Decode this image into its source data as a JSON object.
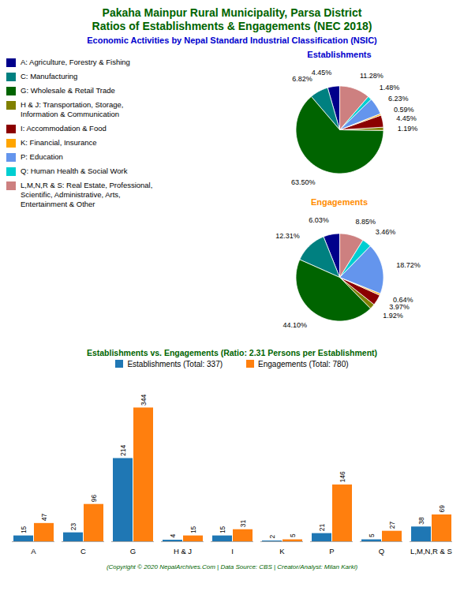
{
  "title": "Pakaha Mainpur Rural Municipality, Parsa District\nRatios of Establishments & Engagements (NEC 2018)",
  "subtitle": "Economic Activities by Nepal Standard Industrial Classification (NSIC)",
  "annotations": [
    "(Copyright © 2020 NepalArchives.Com | Data Source: CBS | Creator/Analyst: Milan Karki)"
  ],
  "chart_data": [
    {
      "type": "pie",
      "title": "Establishments",
      "categories": [
        "A: Agriculture, Forestry & Fishing",
        "C: Manufacturing",
        "G: Wholesale & Retail Trade",
        "H & J: Transportation, Storage,\nInformation & Communication",
        "I: Accommodation & Food",
        "K: Financial, Insurance",
        "P: Education",
        "Q: Human Health & Social Work",
        "L,M,N,R & S: Real Estate, Professional,\nScientific, Administrative, Arts,\nEntertainment & Other"
      ],
      "values": [
        4.45,
        6.82,
        63.5,
        1.19,
        4.45,
        0.59,
        6.23,
        1.48,
        11.28
      ],
      "value_labels": [
        "4.45%",
        "6.82%",
        "63.50%",
        "1.19%",
        "4.45%",
        "0.59%",
        "6.23%",
        "1.48%",
        "11.28%"
      ],
      "colors": [
        "#00008B",
        "#008080",
        "#006400",
        "#808000",
        "#8B0000",
        "#FFA500",
        "#6495ED",
        "#00CED1",
        "#CD8080"
      ],
      "data_labels": true,
      "legend": "left"
    },
    {
      "type": "pie",
      "title": "Engagements",
      "categories": [
        "A: Agriculture, Forestry & Fishing",
        "C: Manufacturing",
        "G: Wholesale & Retail Trade",
        "H & J: Transportation, Storage,\nInformation & Communication",
        "I: Accommodation & Food",
        "K: Financial, Insurance",
        "P: Education",
        "Q: Human Health & Social Work",
        "L,M,N,R & S: Real Estate, Professional,\nScientific, Administrative, Arts,\nEntertainment & Other"
      ],
      "values": [
        6.03,
        12.31,
        44.1,
        1.92,
        3.97,
        0.64,
        18.72,
        3.46,
        8.85
      ],
      "value_labels": [
        "6.03%",
        "12.31%",
        "44.10%",
        "1.92%",
        "3.97%",
        "0.64%",
        "18.72%",
        "3.46%",
        "8.85%"
      ],
      "colors": [
        "#00008B",
        "#008080",
        "#006400",
        "#808000",
        "#8B0000",
        "#FFA500",
        "#6495ED",
        "#00CED1",
        "#CD8080"
      ],
      "data_labels": true,
      "legend": "left"
    },
    {
      "type": "bar",
      "title": "Establishments vs. Engagements (Ratio: 2.31 Persons per Establishment)",
      "categories": [
        "A",
        "C",
        "G",
        "H & J",
        "I",
        "K",
        "P",
        "Q",
        "L,M,N,R & S"
      ],
      "series": [
        {
          "name": "Establishments (Total: 337)",
          "color": "#1F77B4",
          "values": [
            15,
            23,
            214,
            4,
            15,
            2,
            21,
            5,
            38
          ]
        },
        {
          "name": "Engagements (Total: 780)",
          "color": "#FF7F0E",
          "values": [
            47,
            96,
            344,
            15,
            31,
            5,
            146,
            27,
            69
          ]
        }
      ],
      "ylim": [
        0,
        420
      ],
      "data_labels": true,
      "tick_labels": "x",
      "legend": "top"
    }
  ]
}
